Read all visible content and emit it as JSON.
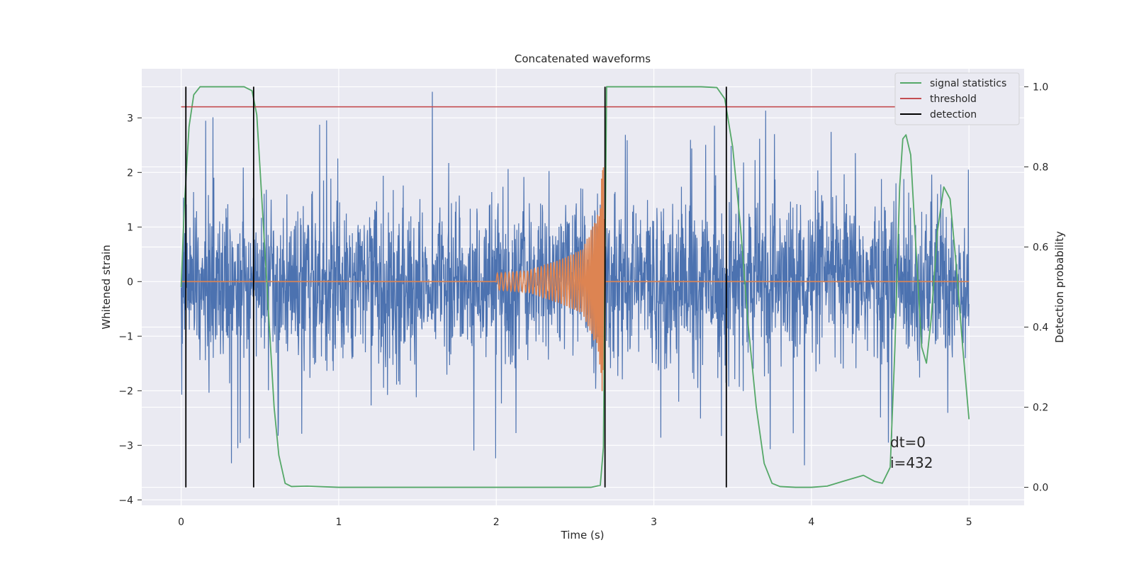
{
  "chart_data": {
    "type": "line",
    "title": "Concatenated waveforms",
    "xlabel": "Time (s)",
    "ylabel": "Whitened strain",
    "ylabel_right": "Detection probability",
    "xlim": [
      -0.25,
      5.35
    ],
    "ylim": [
      -4.1,
      3.9
    ],
    "ylim_right": [
      -0.045,
      1.045
    ],
    "x_ticks": [
      0,
      1,
      2,
      3,
      4,
      5
    ],
    "y_ticks": [
      -4,
      -3,
      -2,
      -1,
      0,
      1,
      2,
      3
    ],
    "y_ticks_right": [
      0.0,
      0.2,
      0.4,
      0.6,
      0.8,
      1.0
    ],
    "x_tick_labels": [
      "0",
      "1",
      "2",
      "3",
      "4",
      "5"
    ],
    "y_tick_labels": [
      "−4",
      "−3",
      "−2",
      "−1",
      "0",
      "1",
      "2",
      "3"
    ],
    "y_tick_labels_right": [
      "0.0",
      "0.2",
      "0.4",
      "0.6",
      "0.8",
      "1.0"
    ],
    "grid": true,
    "legend_position": "top-right",
    "colors": {
      "strain": "#4c72b0",
      "injected_waveform": "#dd8452",
      "signal_statistics": "#55a868",
      "threshold": "#c44e52",
      "detection": "#000000",
      "plot_background": "#eaeaf2",
      "grid": "#ffffff"
    },
    "strain": {
      "x_range": [
        0,
        5
      ],
      "typical_abs_max": 2.0,
      "min": -3.75,
      "max": 3.55
    },
    "injected_waveform": {
      "x": [
        0,
        2.0,
        2.2,
        2.4,
        2.55,
        2.65,
        2.68,
        2.69,
        5.0
      ],
      "amplitude": [
        0,
        0.15,
        0.2,
        0.4,
        0.6,
        1.3,
        2.3,
        0,
        0
      ]
    },
    "series": [
      {
        "name": "signal statistics",
        "axis": "right",
        "x": [
          0,
          0.02,
          0.05,
          0.08,
          0.12,
          0.2,
          0.3,
          0.4,
          0.45,
          0.48,
          0.5,
          0.53,
          0.56,
          0.59,
          0.62,
          0.66,
          0.7,
          0.8,
          1.0,
          2.0,
          2.6,
          2.66,
          2.68,
          2.7,
          3.0,
          3.3,
          3.4,
          3.45,
          3.5,
          3.55,
          3.6,
          3.65,
          3.7,
          3.75,
          3.8,
          3.9,
          4.0,
          4.1,
          4.2,
          4.33,
          4.4,
          4.45,
          4.5,
          4.53,
          4.56,
          4.58,
          4.6,
          4.63,
          4.66,
          4.7,
          4.73,
          4.76,
          4.8,
          4.84,
          4.88,
          4.92,
          4.96,
          5.0
        ],
        "y": [
          0.5,
          0.7,
          0.9,
          0.98,
          1.0,
          1.0,
          1.0,
          1.0,
          0.99,
          0.93,
          0.8,
          0.6,
          0.4,
          0.2,
          0.08,
          0.01,
          0.002,
          0.003,
          0.0,
          0.0,
          0.0,
          0.005,
          0.1,
          1.0,
          1.0,
          1.0,
          0.998,
          0.97,
          0.85,
          0.65,
          0.4,
          0.2,
          0.06,
          0.01,
          0.002,
          0.0,
          0.0,
          0.003,
          0.015,
          0.03,
          0.015,
          0.01,
          0.05,
          0.35,
          0.75,
          0.87,
          0.88,
          0.83,
          0.62,
          0.35,
          0.31,
          0.42,
          0.64,
          0.75,
          0.72,
          0.55,
          0.35,
          0.17
        ]
      },
      {
        "name": "threshold",
        "axis": "right",
        "x": [
          0,
          5
        ],
        "y": [
          0.95,
          0.95
        ]
      },
      {
        "name": "detection",
        "axis": "right",
        "x": [
          0.03,
          0.46,
          2.69,
          3.46
        ],
        "y_range": [
          0,
          1
        ]
      }
    ],
    "legend": [
      "signal statistics",
      "threshold",
      "detection"
    ],
    "annotations": [
      "dt=0",
      "i=432"
    ]
  }
}
